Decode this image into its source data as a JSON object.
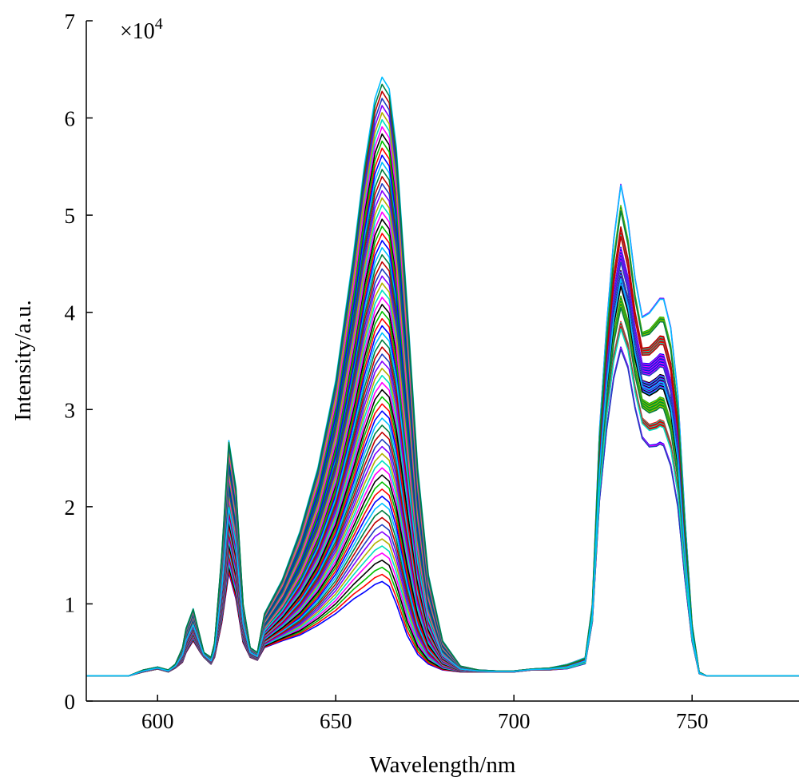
{
  "chart_data": {
    "type": "line",
    "title": "",
    "xlabel": "Wavelength/nm",
    "ylabel": "Intensity/a.u.",
    "y_multiplier_label": "×10",
    "y_multiplier_exponent": "4",
    "xlim": [
      580,
      780
    ],
    "ylim": [
      0,
      7
    ],
    "x_ticks": [
      600,
      650,
      700,
      750
    ],
    "x_tick_labels": [
      "600",
      "650",
      "700",
      "750"
    ],
    "y_ticks": [
      0,
      1,
      2,
      3,
      4,
      5,
      6,
      7
    ],
    "y_tick_labels": [
      "0",
      "1",
      "2",
      "3",
      "4",
      "5",
      "6",
      "7"
    ],
    "grid": false,
    "legend": "none",
    "series_count": 72,
    "profile_x": [
      580,
      592,
      596,
      600,
      603,
      605,
      607,
      608,
      610,
      612,
      613,
      615,
      616,
      618,
      620,
      622,
      624,
      626,
      628,
      630,
      635,
      640,
      645,
      650,
      655,
      658,
      661,
      663,
      665,
      667,
      670,
      673,
      676,
      680,
      685,
      690,
      695,
      700,
      705,
      710,
      715,
      718,
      720,
      722,
      724,
      726,
      728,
      730,
      732,
      734,
      736,
      738,
      740,
      741,
      742,
      744,
      746,
      748,
      750,
      752,
      754,
      758,
      765,
      780
    ],
    "representative_series": [
      {
        "label": "lowest-intensity spectrum",
        "y": [
          0.26,
          0.26,
          0.3,
          0.33,
          0.3,
          0.34,
          0.4,
          0.5,
          0.62,
          0.5,
          0.45,
          0.38,
          0.45,
          0.8,
          1.32,
          1.05,
          0.6,
          0.45,
          0.42,
          0.55,
          0.62,
          0.68,
          0.78,
          0.9,
          1.05,
          1.12,
          1.2,
          1.23,
          1.18,
          1.0,
          0.68,
          0.48,
          0.38,
          0.32,
          0.3,
          0.3,
          0.3,
          0.3,
          0.32,
          0.32,
          0.33,
          0.36,
          0.38,
          0.8,
          2.0,
          2.7,
          3.2,
          3.48,
          3.3,
          2.9,
          2.6,
          2.5,
          2.5,
          2.52,
          2.5,
          2.3,
          1.9,
          1.2,
          0.6,
          0.28,
          0.26,
          0.26,
          0.26,
          0.26
        ]
      },
      {
        "label": "highest-intensity spectrum",
        "y": [
          0.26,
          0.26,
          0.32,
          0.35,
          0.32,
          0.38,
          0.55,
          0.75,
          0.95,
          0.65,
          0.5,
          0.45,
          0.6,
          1.5,
          2.68,
          2.2,
          1.0,
          0.55,
          0.5,
          0.9,
          1.25,
          1.75,
          2.4,
          3.3,
          4.6,
          5.5,
          6.2,
          6.42,
          6.3,
          5.7,
          4.1,
          2.4,
          1.3,
          0.62,
          0.36,
          0.32,
          0.31,
          0.31,
          0.33,
          0.34,
          0.38,
          0.42,
          0.45,
          1.0,
          2.8,
          3.9,
          4.8,
          5.38,
          5.0,
          4.4,
          4.0,
          4.05,
          4.15,
          4.2,
          4.2,
          3.9,
          3.2,
          1.9,
          0.8,
          0.3,
          0.26,
          0.26,
          0.26,
          0.26
        ]
      }
    ]
  },
  "colors": [
    "#0000ff",
    "#ff0000",
    "#00c000",
    "#000000",
    "#ff00ff",
    "#00e0c0",
    "#b0b000",
    "#8000ff",
    "#1f3fbf",
    "#c00000",
    "#008040",
    "#00bfff"
  ]
}
